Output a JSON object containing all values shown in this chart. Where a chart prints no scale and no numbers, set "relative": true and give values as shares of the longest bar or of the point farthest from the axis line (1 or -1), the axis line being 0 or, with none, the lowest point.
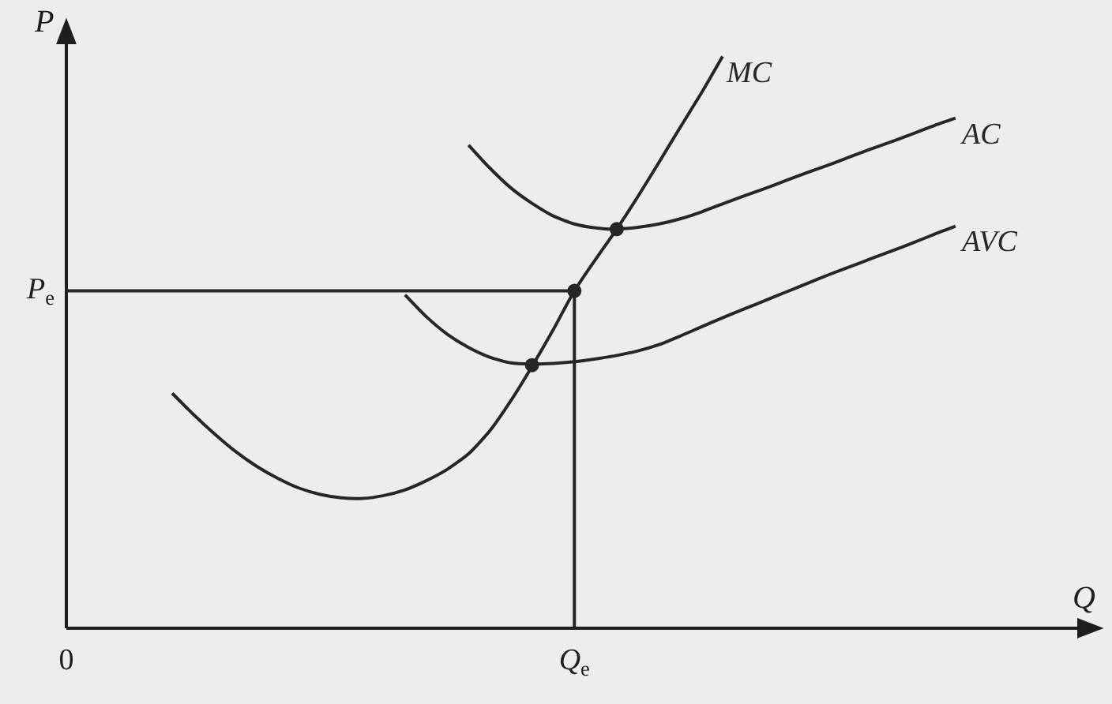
{
  "chart_data": {
    "type": "line",
    "relative": true,
    "xlabel": "Q",
    "ylabel": "P",
    "tick_labels": "x",
    "categories": [
      "0",
      null,
      null,
      null,
      null,
      null,
      null,
      null,
      null,
      null,
      null,
      null,
      null,
      null,
      null,
      null,
      null,
      null,
      null,
      null,
      null,
      null,
      null,
      null,
      "Q$_{e}$",
      null,
      null,
      null,
      null,
      null,
      null,
      null,
      null,
      null,
      null,
      null,
      null,
      null,
      null,
      null,
      null,
      null,
      null,
      null,
      null,
      null,
      null,
      null,
      null
    ],
    "series": [
      {
        "type": "line",
        "color": "#262626",
        "x": [
          "0",
          "Q$_{e}$"
        ],
        "values": [
          0.59,
          0.59
        ]
      },
      {
        "type": "line",
        "color": "#262626",
        "x": [
          "Q$_{e}$",
          "Q$_{e}$"
        ],
        "values": [
          0,
          0.59
        ]
      },
      {
        "name": "MC",
        "color": "#262626",
        "values": [
          null,
          null,
          null,
          null,
          null,
          0.411,
          0.374,
          0.34,
          0.309,
          0.283,
          0.262,
          0.245,
          0.234,
          0.228,
          0.227,
          0.232,
          0.242,
          0.258,
          0.278,
          0.305,
          0.345,
          0.398,
          0.458,
          0.522,
          0.59,
          0.645,
          0.698,
          0.755,
          0.815,
          0.876,
          0.936,
          1.0,
          null,
          null,
          null,
          null,
          null,
          null,
          null,
          null,
          null,
          null,
          null,
          null,
          null,
          null,
          null,
          null,
          null
        ]
      },
      {
        "name": "AC",
        "color": "#262626",
        "values": [
          null,
          null,
          null,
          null,
          null,
          null,
          null,
          null,
          null,
          null,
          null,
          null,
          null,
          null,
          null,
          null,
          null,
          null,
          null,
          0.845,
          0.805,
          0.77,
          0.743,
          0.721,
          0.707,
          0.7,
          0.698,
          0.701,
          0.707,
          0.716,
          0.728,
          0.742,
          0.756,
          0.769,
          0.783,
          0.797,
          0.81,
          0.824,
          0.838,
          0.851,
          0.865,
          0.879,
          0.892,
          null,
          null,
          null,
          null,
          null,
          null
        ]
      },
      {
        "name": "AVC",
        "color": "#262626",
        "values": [
          null,
          null,
          null,
          null,
          null,
          null,
          null,
          null,
          null,
          null,
          null,
          null,
          null,
          null,
          null,
          null,
          0.583,
          0.545,
          0.514,
          0.491,
          0.474,
          0.464,
          0.462,
          0.463,
          0.466,
          0.471,
          0.477,
          0.485,
          0.496,
          0.511,
          0.527,
          0.543,
          0.558,
          0.573,
          0.588,
          0.603,
          0.618,
          0.632,
          0.646,
          0.66,
          0.674,
          0.689,
          0.703,
          null,
          null,
          null,
          null,
          null,
          null
        ]
      },
      {
        "type": "scatter",
        "marker": "circle",
        "color": "#262626",
        "values": [
          null,
          null,
          null,
          null,
          null,
          null,
          null,
          null,
          null,
          null,
          null,
          null,
          null,
          null,
          null,
          null,
          null,
          null,
          null,
          null,
          null,
          null,
          0.46,
          null,
          0.59,
          null,
          0.698,
          null,
          null,
          null,
          null,
          null,
          null,
          null,
          null,
          null,
          null,
          null,
          null,
          null,
          null,
          null,
          null,
          null,
          null,
          null,
          null,
          null,
          null
        ]
      }
    ],
    "annotations": [
      {
        "text": "P$_{e}$",
        "x": "0",
        "y": 0.59
      }
    ]
  }
}
